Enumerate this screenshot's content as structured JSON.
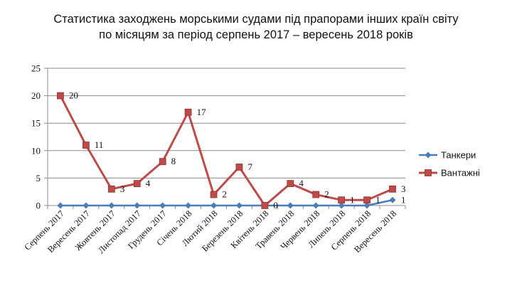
{
  "chart_data": {
    "type": "line",
    "title_lines": [
      "Статистика заходжень морськими судами під прапорами інших країн світу",
      "по місяцям за період серпень 2017 – вересень 2018 років"
    ],
    "categories": [
      "Серпень 2017",
      "Вересень 2017",
      "Жовтень 2017",
      "Листопад 2017",
      "Грудень 2017",
      "Січень 2018",
      "Лютий 2018",
      "Березень 2018",
      "Квітень 2018",
      "Травень 2018",
      "Червень 2018",
      "Липень 2018",
      "Серпень 2018",
      "Вересень 2018"
    ],
    "series": [
      {
        "name": "Танкери",
        "color": "#4a7ebb",
        "marker": "diamond",
        "values": [
          0,
          0,
          0,
          0,
          0,
          0,
          0,
          0,
          0,
          0,
          0,
          0,
          0,
          1
        ],
        "labeled_points": [
          13
        ]
      },
      {
        "name": "Вантажні",
        "color": "#be4b48",
        "marker": "square",
        "values": [
          20,
          11,
          3,
          4,
          8,
          17,
          2,
          7,
          0,
          4,
          2,
          1,
          1,
          3
        ],
        "labeled_points": [
          0,
          1,
          2,
          3,
          4,
          5,
          6,
          7,
          8,
          9,
          10,
          11,
          12,
          13
        ]
      }
    ],
    "ylim": [
      0,
      25
    ],
    "yticks": [
      0,
      5,
      10,
      15,
      20,
      25
    ],
    "grid": true,
    "legend": "right"
  }
}
